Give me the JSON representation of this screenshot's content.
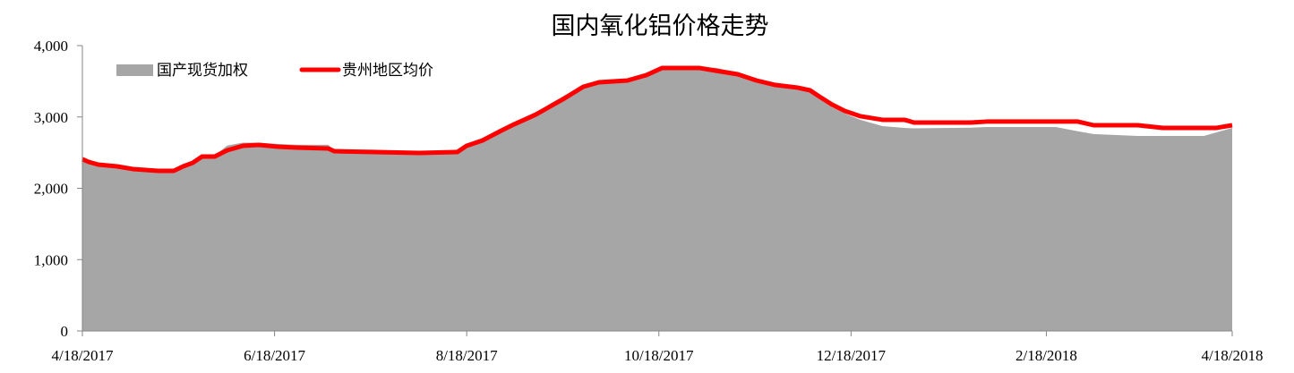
{
  "chart_data": {
    "type": "area+line",
    "title": "国内氧化铝价格走势",
    "xlabel": "",
    "ylabel": "",
    "ylim": [
      0,
      4000
    ],
    "yticks": [
      "0",
      "1,000",
      "2,000",
      "3,000",
      "4,000"
    ],
    "ytick_values": [
      0,
      1000,
      2000,
      3000,
      4000
    ],
    "xlim": [
      "2017-04-18",
      "2018-04-18"
    ],
    "xticks": [
      "4/18/2017",
      "6/18/2017",
      "8/18/2017",
      "10/18/2017",
      "12/18/2017",
      "2/18/2018",
      "4/18/2018"
    ],
    "xtick_dates": [
      "2017-04-18",
      "2017-06-18",
      "2017-08-18",
      "2017-10-18",
      "2017-12-18",
      "2018-02-18",
      "2018-04-18"
    ],
    "grid": false,
    "legend_placement": "top-left",
    "x": [
      "2017-04-18",
      "2017-04-20",
      "2017-04-23",
      "2017-04-29",
      "2017-05-04",
      "2017-05-12",
      "2017-05-17",
      "2017-05-20",
      "2017-05-23",
      "2017-05-26",
      "2017-05-30",
      "2017-06-03",
      "2017-06-08",
      "2017-06-13",
      "2017-06-19",
      "2017-06-25",
      "2017-07-05",
      "2017-07-07",
      "2017-07-20",
      "2017-08-03",
      "2017-08-15",
      "2017-08-18",
      "2017-08-23",
      "2017-08-29",
      "2017-09-02",
      "2017-09-09",
      "2017-09-14",
      "2017-09-18",
      "2017-09-24",
      "2017-09-29",
      "2017-10-08",
      "2017-10-14",
      "2017-10-19",
      "2017-10-31",
      "2017-11-05",
      "2017-11-12",
      "2017-11-18",
      "2017-11-24",
      "2017-12-01",
      "2017-12-05",
      "2017-12-08",
      "2017-12-12",
      "2017-12-16",
      "2017-12-21",
      "2017-12-28",
      "2018-01-04",
      "2018-01-07",
      "2018-01-25",
      "2018-01-30",
      "2018-02-21",
      "2018-02-28",
      "2018-03-05",
      "2018-03-19",
      "2018-03-27",
      "2018-04-09",
      "2018-04-13",
      "2018-04-18"
    ],
    "series": [
      {
        "name": "国产现货加权",
        "type": "area",
        "color": "#a6a6a6",
        "values": [
          2390,
          2360,
          2330,
          2300,
          2270,
          2245,
          2245,
          2310,
          2370,
          2450,
          2460,
          2600,
          2640,
          2640,
          2620,
          2610,
          2610,
          2540,
          2540,
          2500,
          2510,
          2600,
          2680,
          2820,
          2900,
          3060,
          3200,
          3300,
          3440,
          3490,
          3520,
          3600,
          3690,
          3700,
          3690,
          3620,
          3520,
          3440,
          3400,
          3340,
          3250,
          3135,
          3050,
          2960,
          2872,
          2847,
          2840,
          2850,
          2859,
          2859,
          2800,
          2760,
          2734,
          2734,
          2734,
          2784,
          2847
        ]
      },
      {
        "name": "贵州地区均价",
        "type": "line",
        "color": "#ff0000",
        "values": [
          2408,
          2370,
          2332,
          2307,
          2270,
          2245,
          2245,
          2307,
          2357,
          2445,
          2445,
          2533,
          2596,
          2608,
          2583,
          2570,
          2558,
          2520,
          2508,
          2495,
          2508,
          2596,
          2671,
          2809,
          2896,
          3035,
          3160,
          3260,
          3423,
          3486,
          3511,
          3586,
          3686,
          3686,
          3649,
          3599,
          3511,
          3448,
          3411,
          3373,
          3285,
          3172,
          3085,
          3010,
          2960,
          2960,
          2922,
          2922,
          2935,
          2935,
          2935,
          2884,
          2884,
          2847,
          2847,
          2847,
          2884
        ]
      }
    ]
  }
}
